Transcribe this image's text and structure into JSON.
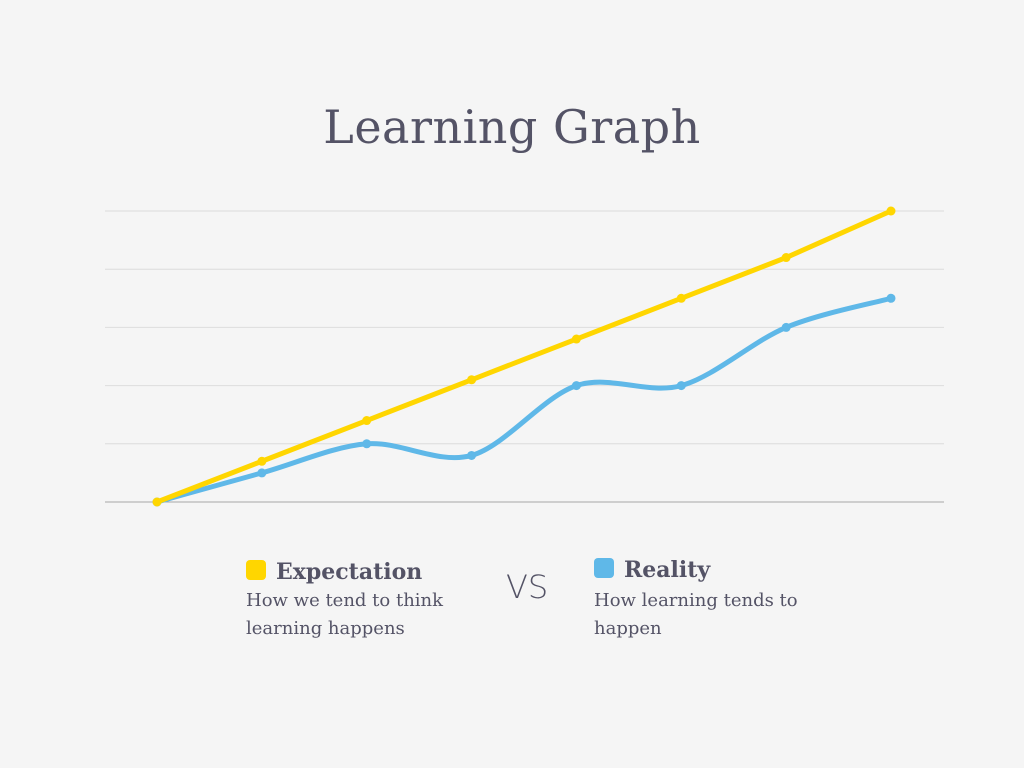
{
  "chart_data": {
    "type": "line",
    "title": "Learning Graph",
    "x": [
      0,
      1,
      2,
      3,
      4,
      5,
      6,
      7
    ],
    "ylim": [
      0,
      5
    ],
    "grid": true,
    "legend_placement": "bottom",
    "series": [
      {
        "name": "Expectation",
        "description": "How we tend to think learning happens",
        "color": "#FFD600",
        "smooth": false,
        "values": [
          0,
          0.7,
          1.4,
          2.1,
          2.8,
          3.5,
          4.2,
          5.0
        ]
      },
      {
        "name": "Reality",
        "description": "How learning tends to happen",
        "color": "#5FB8E8",
        "smooth": true,
        "values": [
          0,
          0.5,
          1.0,
          0.8,
          2.0,
          2.0,
          3.0,
          3.5
        ]
      }
    ],
    "separator_text": "VS"
  }
}
